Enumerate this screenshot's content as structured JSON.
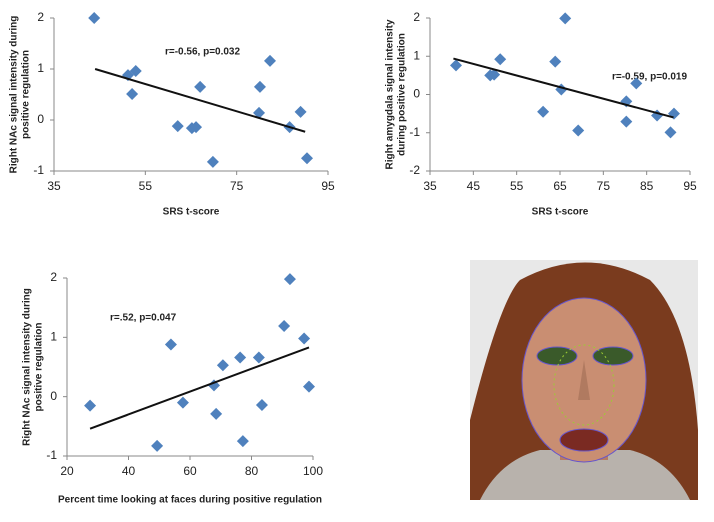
{
  "chart_data": [
    {
      "type": "scatter",
      "x_label": "SRS t-score",
      "y_label": [
        "Right NAc signal intensity during",
        "positive regulation"
      ],
      "annotation": "r=-0.56, p=0.032",
      "color": "#4f81bd",
      "x": [
        43.8,
        51.2,
        52.9,
        52.1,
        67.0,
        62.1,
        65.2,
        66.1,
        69.8,
        80.1,
        82.3,
        79.9,
        86.6,
        89.0,
        90.4
      ],
      "values": [
        2.0,
        0.88,
        0.96,
        0.51,
        0.65,
        -0.12,
        -0.16,
        -0.14,
        -0.82,
        0.65,
        1.16,
        0.14,
        -0.14,
        0.16,
        -0.75
      ],
      "trendline": {
        "x": [
          44,
          90
        ],
        "y": [
          1.0,
          -0.23
        ]
      },
      "xlim": [
        35,
        95
      ],
      "xticks": [
        35,
        55,
        75,
        95
      ],
      "ylim": [
        -1,
        2
      ],
      "yticks": [
        -1,
        0,
        1,
        2
      ]
    },
    {
      "type": "scatter",
      "x_label": "SRS t-score",
      "y_label": [
        "Right amygdala signal intensity",
        "during positive regulation"
      ],
      "annotation": "r=-0.59, p=0.019",
      "color": "#4f81bd",
      "x": [
        41.0,
        48.9,
        49.8,
        51.2,
        63.9,
        61.1,
        65.3,
        66.2,
        69.2,
        80.3,
        80.3,
        82.6,
        87.4,
        90.5,
        91.3
      ],
      "values": [
        0.76,
        0.5,
        0.52,
        0.92,
        0.86,
        -0.45,
        0.13,
        1.99,
        -0.94,
        -0.18,
        -0.71,
        0.29,
        -0.55,
        -0.99,
        -0.5
      ],
      "trendline": {
        "x": [
          40.4,
          91.2
        ],
        "y": [
          0.94,
          -0.6
        ]
      },
      "xlim": [
        35,
        95
      ],
      "xticks": [
        35,
        45,
        55,
        65,
        75,
        85,
        95
      ],
      "ylim": [
        -2,
        2
      ],
      "yticks": [
        -2,
        -1,
        0,
        1,
        2
      ]
    },
    {
      "type": "scatter",
      "x_label": "Percent time looking at faces during positive regulation",
      "y_label": [
        "Right NAc signal intensity during",
        "positive regulation"
      ],
      "annotation": "r=.52, p=0.047",
      "color": "#4f81bd",
      "x": [
        27.5,
        49.3,
        53.8,
        57.7,
        67.8,
        68.5,
        70.7,
        76.3,
        77.2,
        82.4,
        83.4,
        90.6,
        92.5,
        97.1,
        98.7
      ],
      "values": [
        -0.15,
        -0.83,
        0.88,
        -0.1,
        0.19,
        -0.29,
        0.53,
        0.66,
        -0.75,
        0.66,
        -0.14,
        1.19,
        1.98,
        0.98,
        0.17
      ],
      "trendline": {
        "x": [
          27.5,
          98.7
        ],
        "y": [
          -0.54,
          0.83
        ]
      },
      "xlim": [
        20,
        100
      ],
      "xticks": [
        20,
        40,
        60,
        80,
        100
      ],
      "ylim": [
        -1,
        2
      ],
      "yticks": [
        -1,
        0,
        1,
        2
      ]
    }
  ]
}
